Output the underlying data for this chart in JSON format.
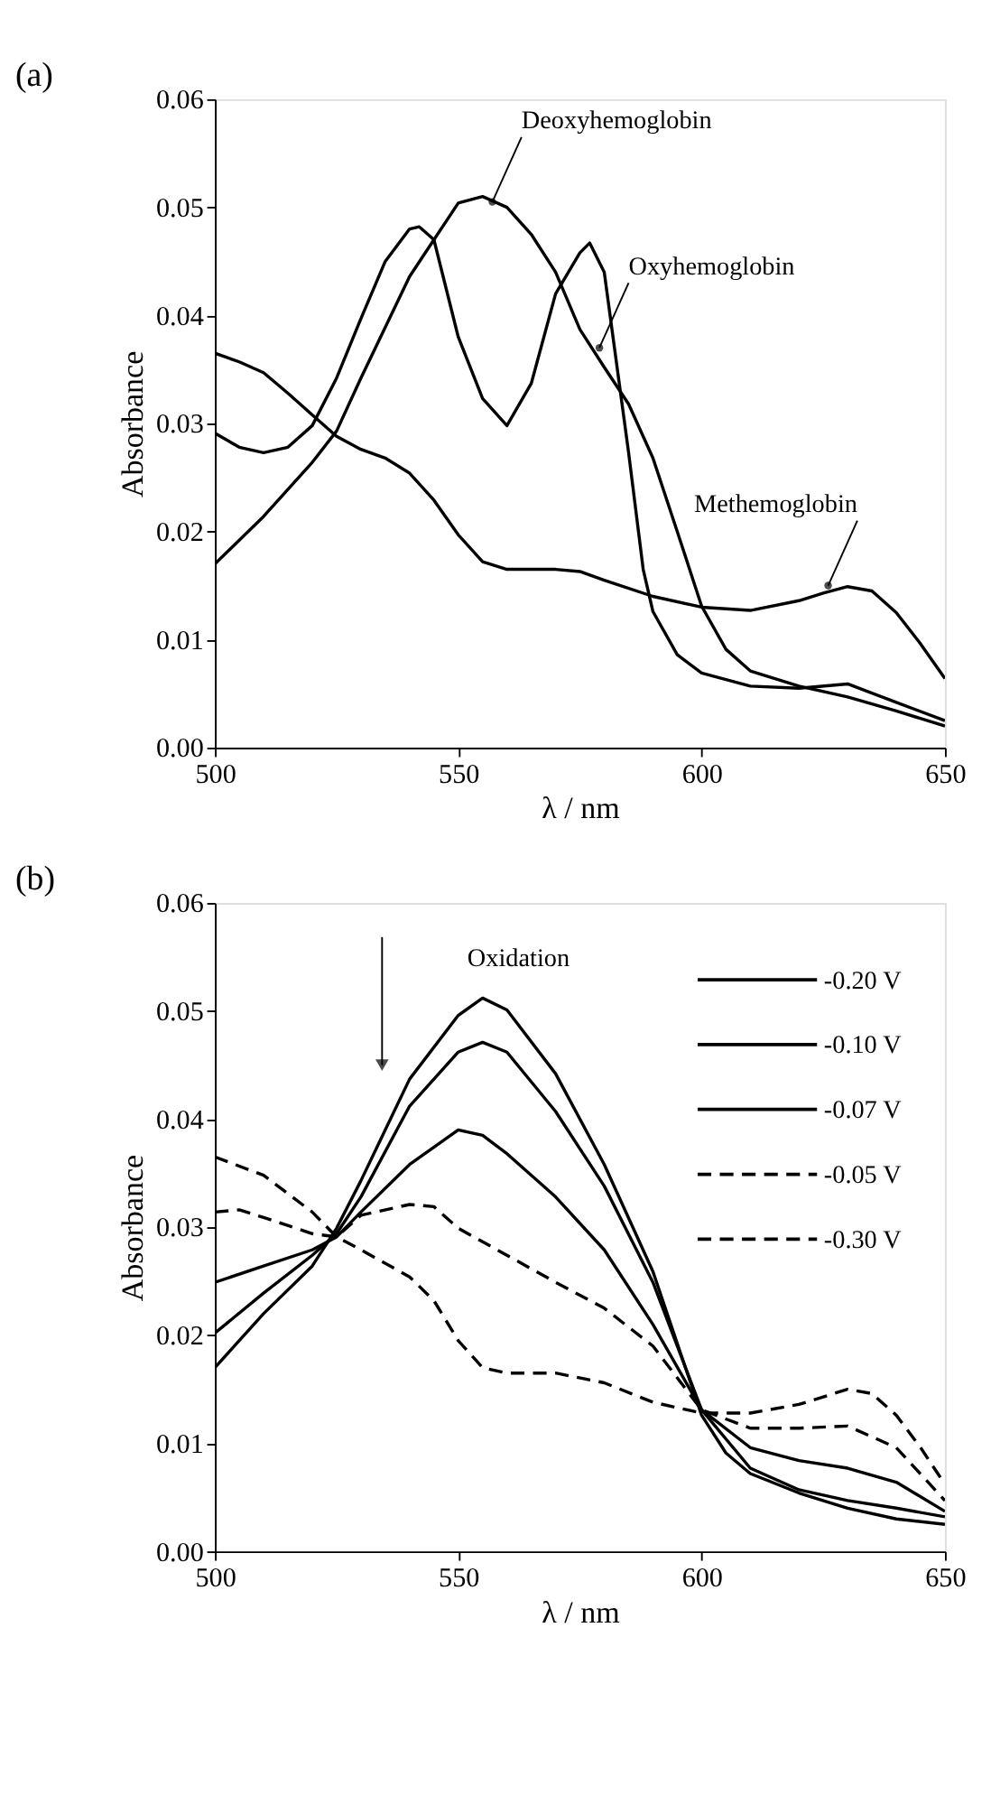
{
  "chart_data": [
    {
      "type": "line",
      "title": "(a)",
      "xlabel": "λ / nm",
      "ylabel": "Absorbance",
      "xlim": [
        500,
        650
      ],
      "xticks": [
        500,
        550,
        600,
        650
      ],
      "ylim": [
        0,
        0.06
      ],
      "yticks": [
        {
          "value": 0,
          "label": "0.00"
        },
        0.01,
        0.02,
        0.03,
        0.04,
        0.05,
        0.06
      ],
      "grid": false,
      "legend": false,
      "line_style": "solid",
      "annotations": [
        {
          "text": "Deoxyhemoglobin",
          "x": 557,
          "y": 0.0505
        },
        {
          "text": "Oxyhemoglobin",
          "x": 579,
          "y": 0.037
        },
        {
          "text": "Methemoglobin",
          "x": 626,
          "y": 0.015
        }
      ],
      "series": [
        {
          "color": "#000000",
          "x": [
            500,
            505,
            510,
            515,
            520,
            525,
            530,
            535,
            540,
            542,
            545,
            550,
            555,
            560,
            565,
            570,
            575,
            577,
            580,
            585,
            588,
            590,
            595,
            600,
            610,
            620,
            630,
            640,
            650
          ],
          "values": [
            0.0291,
            0.0278,
            0.0273,
            0.0278,
            0.0298,
            0.0342,
            0.0397,
            0.045,
            0.048,
            0.0482,
            0.047,
            0.038,
            0.0323,
            0.0298,
            0.0337,
            0.042,
            0.0458,
            0.0467,
            0.044,
            0.0273,
            0.0165,
            0.0126,
            0.0086,
            0.0069,
            0.0057,
            0.0055,
            0.0059,
            0.0042,
            0.0025
          ]
        },
        {
          "color": "#000000",
          "x": [
            500,
            510,
            520,
            525,
            530,
            540,
            545,
            550,
            555,
            560,
            565,
            570,
            575,
            580,
            585,
            590,
            595,
            600,
            605,
            610,
            620,
            630,
            640,
            650
          ],
          "values": [
            0.017,
            0.0214,
            0.0264,
            0.0293,
            0.0342,
            0.0436,
            0.047,
            0.0504,
            0.051,
            0.05,
            0.0475,
            0.044,
            0.0387,
            0.0352,
            0.0318,
            0.0268,
            0.02,
            0.0131,
            0.0091,
            0.0071,
            0.0057,
            0.0047,
            0.0034,
            0.002
          ]
        },
        {
          "color": "#000000",
          "x": [
            500,
            505,
            510,
            515,
            520,
            525,
            530,
            535,
            540,
            545,
            550,
            555,
            560,
            570,
            575,
            580,
            590,
            600,
            610,
            620,
            625,
            630,
            635,
            640,
            645,
            650
          ],
          "values": [
            0.0365,
            0.0357,
            0.0347,
            0.0328,
            0.0308,
            0.0288,
            0.0276,
            0.0268,
            0.0254,
            0.0229,
            0.0197,
            0.0172,
            0.0165,
            0.0165,
            0.0163,
            0.0155,
            0.014,
            0.013,
            0.0127,
            0.0136,
            0.0143,
            0.0149,
            0.0145,
            0.0125,
            0.0096,
            0.0064
          ]
        }
      ]
    },
    {
      "type": "line",
      "title": "(b)",
      "xlabel": "λ / nm",
      "ylabel": "Absorbance",
      "xlim": [
        500,
        650
      ],
      "xticks": [
        500,
        550,
        600,
        650
      ],
      "ylim": [
        0,
        0.06
      ],
      "yticks": [
        {
          "value": 0,
          "label": "0.00"
        },
        0.01,
        0.02,
        0.03,
        0.04,
        0.05,
        0.06
      ],
      "grid": false,
      "legend": "top right",
      "annotations": [
        "Oxidation"
      ],
      "series": [
        {
          "name": "-0.20 V",
          "color": "#000000",
          "line_style": "solid",
          "x": [
            500,
            510,
            520,
            525,
            530,
            540,
            550,
            555,
            560,
            570,
            580,
            590,
            600,
            605,
            610,
            620,
            630,
            640,
            650
          ],
          "values": [
            0.017,
            0.022,
            0.0264,
            0.0299,
            0.0343,
            0.0437,
            0.0496,
            0.0512,
            0.0501,
            0.0442,
            0.0358,
            0.0259,
            0.0126,
            0.0091,
            0.0072,
            0.0054,
            0.004,
            0.003,
            0.0025
          ]
        },
        {
          "name": "-0.10 V",
          "color": "#000000",
          "line_style": "solid",
          "x": [
            500,
            510,
            520,
            525,
            530,
            540,
            550,
            555,
            560,
            570,
            580,
            590,
            600,
            610,
            620,
            630,
            640,
            650
          ],
          "values": [
            0.0202,
            0.0239,
            0.0274,
            0.0294,
            0.0328,
            0.0412,
            0.0462,
            0.0471,
            0.0462,
            0.0407,
            0.0338,
            0.0249,
            0.0131,
            0.0077,
            0.0057,
            0.0047,
            0.004,
            0.0032
          ]
        },
        {
          "name": "-0.07 V",
          "color": "#000000",
          "line_style": "solid",
          "x": [
            500,
            510,
            520,
            525,
            530,
            540,
            550,
            555,
            560,
            570,
            580,
            590,
            600,
            610,
            620,
            630,
            640,
            650
          ],
          "values": [
            0.0249,
            0.0264,
            0.0279,
            0.0291,
            0.0314,
            0.0358,
            0.039,
            0.0385,
            0.0368,
            0.0328,
            0.0279,
            0.021,
            0.0131,
            0.0096,
            0.0084,
            0.0077,
            0.0064,
            0.0037
          ]
        },
        {
          "name": "-0.05 V",
          "color": "#000000",
          "line_style": "dashed",
          "x": [
            500,
            505,
            510,
            520,
            525,
            530,
            540,
            545,
            550,
            560,
            570,
            580,
            590,
            600,
            610,
            620,
            630,
            640,
            650
          ],
          "values": [
            0.0314,
            0.0316,
            0.0309,
            0.0294,
            0.0291,
            0.0311,
            0.0321,
            0.0319,
            0.0299,
            0.0274,
            0.0249,
            0.0225,
            0.019,
            0.0131,
            0.0114,
            0.0114,
            0.0116,
            0.0096,
            0.0047
          ]
        },
        {
          "name": "-0.30 V",
          "color": "#000000",
          "line_style": "dashed",
          "x": [
            500,
            510,
            520,
            525,
            530,
            540,
            545,
            550,
            555,
            560,
            570,
            580,
            590,
            600,
            610,
            620,
            630,
            635,
            640,
            645,
            650
          ],
          "values": [
            0.0365,
            0.0348,
            0.0314,
            0.0291,
            0.0279,
            0.0254,
            0.0232,
            0.0195,
            0.017,
            0.0165,
            0.0165,
            0.0156,
            0.0138,
            0.0128,
            0.0128,
            0.0136,
            0.015,
            0.0146,
            0.0126,
            0.0096,
            0.0062
          ]
        }
      ]
    }
  ]
}
